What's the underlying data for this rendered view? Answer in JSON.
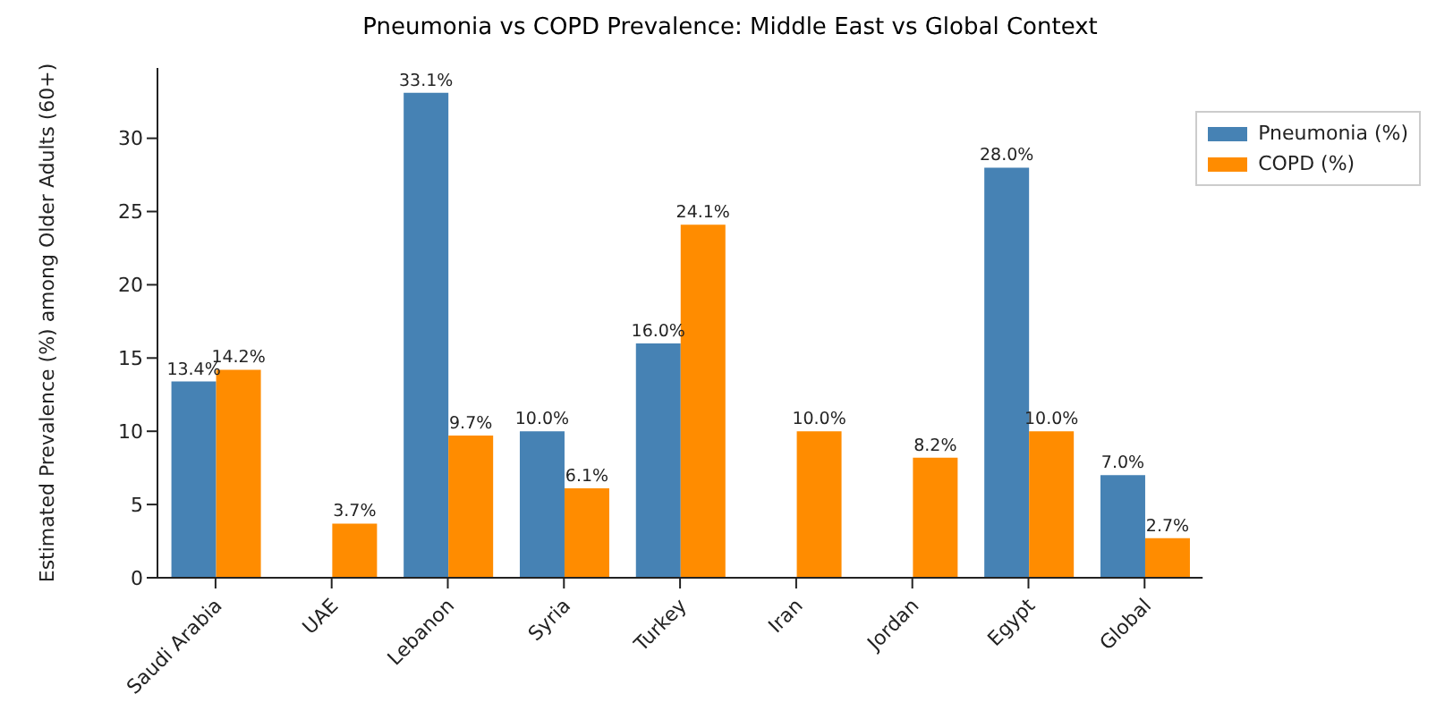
{
  "chart_data": {
    "type": "bar",
    "title": "Pneumonia vs COPD Prevalence: Middle East vs Global Context",
    "ylabel": "Estimated Prevalence (%) among Older Adults (60+)",
    "categories": [
      "Saudi Arabia",
      "UAE",
      "Lebanon",
      "Syria",
      "Turkey",
      "Iran",
      "Jordan",
      "Egypt",
      "Global"
    ],
    "series": [
      {
        "name": "Pneumonia (%)",
        "color": "#4682b4",
        "values": [
          13.4,
          null,
          33.1,
          10.0,
          16.0,
          null,
          null,
          28.0,
          7.0
        ],
        "value_labels": [
          "13.4%",
          null,
          "33.1%",
          "10.0%",
          "16.0%",
          null,
          null,
          "28.0%",
          "7.0%"
        ]
      },
      {
        "name": "COPD (%)",
        "color": "#ff8c00",
        "values": [
          14.2,
          3.7,
          9.7,
          6.1,
          24.1,
          10.0,
          8.2,
          10.0,
          2.7
        ],
        "value_labels": [
          "14.2%",
          "3.7%",
          "9.7%",
          "6.1%",
          "24.1%",
          "10.0%",
          "8.2%",
          "10.0%",
          "2.7%"
        ]
      }
    ],
    "ylim": [
      0,
      34.8
    ],
    "yticks": [
      0,
      5,
      10,
      15,
      20,
      25,
      30
    ],
    "legend": "top right"
  }
}
